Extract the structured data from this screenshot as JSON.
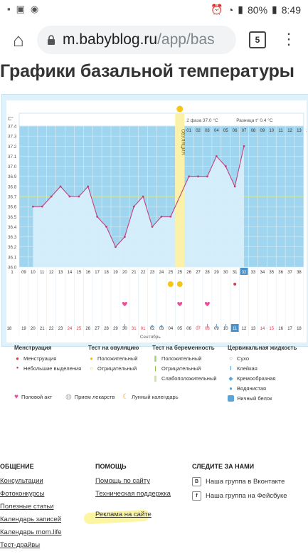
{
  "status_bar": {
    "battery": "80%",
    "time": "8:49"
  },
  "browser": {
    "url_main": "m.babyblog.ru",
    "url_rest": "/app/bas",
    "tab_count": "5"
  },
  "page_title": "Графики базальной температуры",
  "chart_info": {
    "phase2_label": "2 фаза",
    "phase2_value": "37.0 °C",
    "diff_label": "Разница t°",
    "diff_value": "0.4 °C",
    "ovulation_label": "ОВУЛЯЦИЯ",
    "month_label": "Сентябрь"
  },
  "chart_data": {
    "type": "line",
    "y_unit": "C°",
    "y_ticks": [
      "37.4",
      "37.3",
      "37.2",
      "37.1",
      "37.0",
      "36.9",
      "36.8",
      "36.7",
      "36.6",
      "36.5",
      "36.4",
      "36.3",
      "36.2",
      "36.1",
      "36.0"
    ],
    "ylim": [
      36.0,
      37.4
    ],
    "cycle_days": [
      "1",
      "09",
      "10",
      "11",
      "12",
      "13",
      "14",
      "15",
      "16",
      "17",
      "18",
      "19",
      "20",
      "21",
      "22",
      "23",
      "24",
      "25",
      "25",
      "26",
      "27",
      "28",
      "29",
      "30",
      "31",
      "32",
      "33",
      "34",
      "35",
      "36",
      "37",
      "38",
      "39"
    ],
    "phase2_day_numbers": [
      "01",
      "02",
      "03",
      "04",
      "05",
      "06",
      "07",
      "08",
      "09",
      "10",
      "11",
      "12",
      "13",
      "14"
    ],
    "dates": [
      "18",
      "19",
      "20",
      "21",
      "22",
      "23",
      "24",
      "25",
      "26",
      "27",
      "28",
      "29",
      "30",
      "31",
      "01",
      "02",
      "03",
      "04",
      "05",
      "06",
      "07",
      "08",
      "09",
      "10",
      "11",
      "12",
      "13",
      "14",
      "15",
      "16",
      "17",
      "18"
    ],
    "temperatures": [
      36.6,
      36.6,
      36.7,
      36.8,
      36.7,
      36.7,
      36.8,
      36.5,
      36.4,
      36.2,
      36.3,
      36.6,
      36.7,
      36.4,
      36.5,
      36.5,
      36.9,
      36.9,
      36.9,
      37.1,
      37.0,
      36.8,
      37.2
    ],
    "coverline": 36.7
  },
  "legend": {
    "menstruation": {
      "title": "Менструация",
      "items": [
        "Менструация",
        "Небольшие выделения"
      ]
    },
    "ovulation_test": {
      "title": "Тест на овуляцию",
      "items": [
        "Положительный",
        "Отрицательный"
      ]
    },
    "pregnancy_test": {
      "title": "Тест на беременность",
      "items": [
        "Положительный",
        "Отрицательный",
        "Слабоположительный"
      ]
    },
    "cervical": {
      "title": "Цервикальная жидкость",
      "items": [
        "Сухо",
        "Клейкая",
        "Кремообразная",
        "Водянистая",
        "Яичный белок"
      ]
    },
    "bottom": [
      "Половой акт",
      "Прием лекарств",
      "Лунный календарь"
    ]
  },
  "footer": {
    "col1": {
      "title": "ОБЩЕНИЕ",
      "links": [
        "Консультации",
        "Фотоконкурсы",
        "Полезные статьи",
        "Календарь записей",
        "Календарь mom.life",
        "Тест-драйвы"
      ]
    },
    "col2": {
      "title": "ПОМОЩЬ",
      "links": [
        "Помощь по сайту",
        "Техническая поддержка",
        "Реклама на сайте"
      ]
    },
    "col3": {
      "title": "СЛЕДИТЕ ЗА НАМИ",
      "links": [
        "Наша группа в Вконтакте",
        "Наша группа на Фейсбуке"
      ]
    }
  }
}
